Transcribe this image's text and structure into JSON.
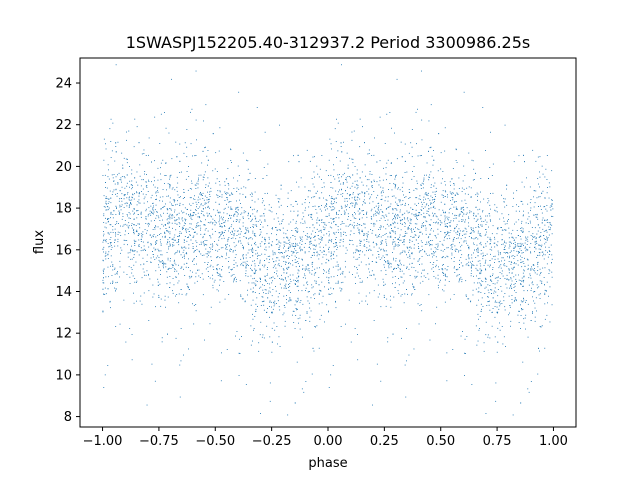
{
  "chart_data": {
    "type": "scatter",
    "title": "1SWASPJ152205.40-312937.2 Period 3300986.25s",
    "xlabel": "phase",
    "ylabel": "flux",
    "xlim": [
      -1.1,
      1.1
    ],
    "ylim": [
      7.5,
      25.2
    ],
    "xticks": [
      -1.0,
      -0.75,
      -0.5,
      -0.25,
      0.0,
      0.25,
      0.5,
      0.75,
      1.0
    ],
    "xtick_labels": [
      "−1.00",
      "−0.75",
      "−0.50",
      "−0.25",
      "0.00",
      "0.25",
      "0.50",
      "0.75",
      "1.00"
    ],
    "yticks": [
      8,
      10,
      12,
      14,
      16,
      18,
      20,
      22,
      24
    ],
    "ytick_labels": [
      "8",
      "10",
      "12",
      "14",
      "16",
      "18",
      "20",
      "22",
      "24"
    ],
    "grid": false,
    "marker_color": "#1f77b4",
    "profile": {
      "phase": [
        0.0,
        0.05,
        0.1,
        0.15,
        0.2,
        0.25,
        0.3,
        0.35,
        0.4,
        0.45,
        0.5,
        0.55,
        0.6,
        0.65,
        0.7,
        0.75,
        0.8,
        0.85,
        0.9,
        0.95,
        1.0
      ],
      "median_flux": [
        16.5,
        17.6,
        17.9,
        17.3,
        17.0,
        17.0,
        16.9,
        16.8,
        17.2,
        17.4,
        16.8,
        16.7,
        16.6,
        16.2,
        15.4,
        15.0,
        15.6,
        15.7,
        15.4,
        16.6,
        16.8
      ]
    }
  }
}
